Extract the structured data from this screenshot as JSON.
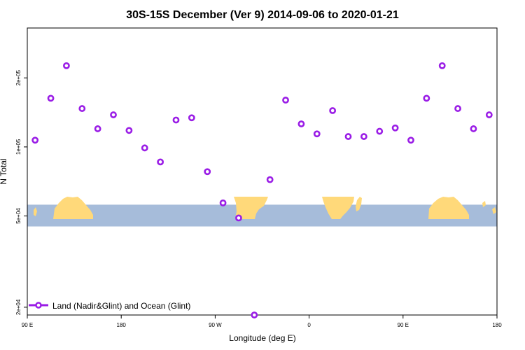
{
  "chart_data": {
    "type": "scatter",
    "title": "30S-15S December (Ver 9)   2014-09-06 to 2020-01-21",
    "xlabel": "Longitude (deg E)",
    "ylabel": "N Total",
    "x_range": [
      90,
      540
    ],
    "y_range": [
      18500,
      330000
    ],
    "y_scale": "log",
    "x_ticks": [
      {
        "value": 90,
        "label": "90 E"
      },
      {
        "value": 180,
        "label": "180"
      },
      {
        "value": 270,
        "label": "90 W"
      },
      {
        "value": 360,
        "label": "0"
      },
      {
        "value": 450,
        "label": "90 E"
      },
      {
        "value": 540,
        "label": "180"
      }
    ],
    "y_ticks": [
      {
        "value": 20000,
        "label": "2e+04"
      },
      {
        "value": 50000,
        "label": "5e+04"
      },
      {
        "value": 100000,
        "label": "1e+05"
      },
      {
        "value": 200000,
        "label": "2e+05"
      }
    ],
    "legend": {
      "label": "Land (Nadir&Glint) and Ocean (Glint)",
      "position": "bottom-left"
    },
    "map_band": {
      "y_top": 56000,
      "y_bottom": 45000
    },
    "series": [
      {
        "name": "Land (Nadir&Glint) and Ocean (Glint)",
        "color": "#9a1de6",
        "x": [
          97.5,
          112.5,
          127.5,
          142.5,
          157.5,
          172.5,
          187.5,
          202.5,
          217.5,
          232.5,
          247.5,
          262.5,
          277.5,
          292.5,
          307.5,
          322.5,
          337.5,
          352.5,
          367.5,
          382.5,
          397.5,
          412.5,
          427.5,
          442.5,
          457.5,
          472.5,
          487.5,
          502.5,
          517.5,
          532.5
        ],
        "y": [
          107000,
          163000,
          226000,
          147000,
          120000,
          138000,
          118000,
          99000,
          86000,
          131000,
          134000,
          78000,
          57000,
          49000,
          18500,
          72000,
          160000,
          126000,
          114000,
          144000,
          111000,
          111000,
          117000,
          121000,
          107000,
          163000,
          226000,
          147000,
          120000,
          138000
        ]
      }
    ]
  }
}
